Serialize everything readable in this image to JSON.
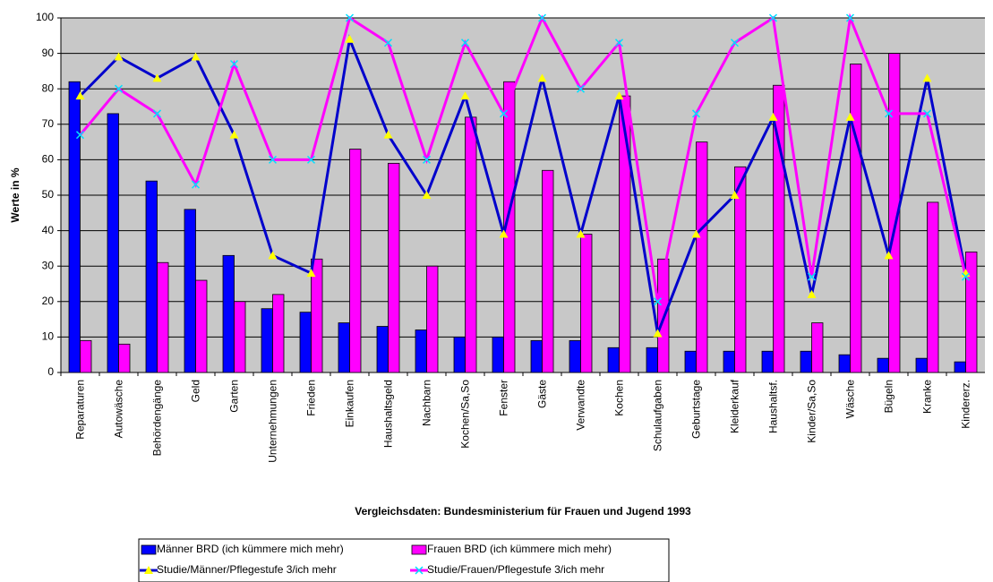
{
  "chart_data": {
    "type": "bar_line",
    "y_label": "Werte in %",
    "x_label": "Vergleichsdaten: Bundesministerium für Frauen und Jugend 1993",
    "categories": [
      "Reparaturen",
      "Autowäsche",
      "Behördengänge",
      "Geld",
      "Garten",
      "Unternehmungen",
      "Frieden",
      "Einkaufen",
      "Haushaltsgeld",
      "Nachbarn",
      "Kochen/Sa,So",
      "Fenster",
      "Gäste",
      "Verwandte",
      "Kochen",
      "Schulaufgaben",
      "Geburtstage",
      "Kleiderkauf",
      "Haushaltsf.",
      "Kinder/Sa,So",
      "Wäsche",
      "Bügeln",
      "Kranke",
      "Kindererz."
    ],
    "series": [
      {
        "name": "Männer BRD (ich kümmere mich mehr)",
        "kind": "bar",
        "color": "#0000ff",
        "values": [
          82,
          73,
          54,
          46,
          33,
          18,
          17,
          14,
          13,
          12,
          10,
          10,
          9,
          9,
          7,
          7,
          6,
          6,
          6,
          6,
          5,
          4,
          4,
          3
        ]
      },
      {
        "name": "Frauen BRD (ich kümmere mich mehr)",
        "kind": "bar",
        "color": "#ff00ff",
        "values": [
          9,
          8,
          31,
          26,
          20,
          22,
          32,
          63,
          59,
          30,
          72,
          82,
          57,
          39,
          78,
          32,
          65,
          58,
          81,
          14,
          87,
          90,
          48,
          34
        ]
      },
      {
        "name": "Studie/Männer/Pflegestufe 3/ich mehr",
        "kind": "line",
        "color": "#0000cc",
        "marker": "triangle",
        "marker_color": "#ffff00",
        "values": [
          78,
          89,
          83,
          89,
          67,
          33,
          28,
          94,
          67,
          50,
          78,
          39,
          83,
          39,
          78,
          11,
          39,
          50,
          72,
          22,
          72,
          33,
          83,
          28
        ]
      },
      {
        "name": "Studie/Frauen/Pflegestufe 3/ich mehr",
        "kind": "line",
        "color": "#ff00ff",
        "marker": "x",
        "marker_color": "#00e0ff",
        "values": [
          67,
          80,
          73,
          53,
          87,
          60,
          60,
          100,
          93,
          60,
          93,
          73,
          100,
          80,
          93,
          20,
          73,
          93,
          100,
          27,
          100,
          73,
          73,
          27
        ]
      }
    ],
    "ylim": [
      0,
      100
    ],
    "yticks": [
      0,
      10,
      20,
      30,
      40,
      50,
      60,
      70,
      80,
      90,
      100
    ],
    "grid": true
  }
}
